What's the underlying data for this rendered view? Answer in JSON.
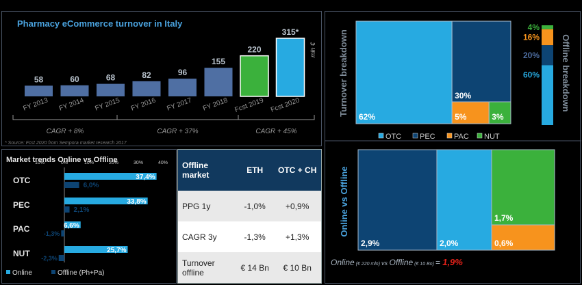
{
  "colors": {
    "dark_blue": "#0d4473",
    "light_blue": "#27aae1",
    "orange": "#f7931d",
    "green": "#3bb13c",
    "grey_blue": "#4f6fa3",
    "red": "#e32119"
  },
  "chart_data": [
    {
      "type": "bar",
      "title": "Pharmacy eCommerce turnover in Italy",
      "unit": "mln €",
      "categories": [
        "FY 2013",
        "FY 2014",
        "FY 2015",
        "FY 2016",
        "FY 2017",
        "FY 2018",
        "Fcst 2019",
        "Fcst 2020"
      ],
      "values": [
        58,
        60,
        68,
        82,
        96,
        155,
        220,
        315
      ],
      "value_labels": [
        "58",
        "60",
        "68",
        "82",
        "96",
        "155",
        "220",
        "315*"
      ],
      "cagr": [
        "CAGR + 8%",
        "CAGR + 37%",
        "CAGR + 45%"
      ],
      "source": "* Source: Fcst 2020 from Sempora market research 2017"
    },
    {
      "type": "bar",
      "title": "Market trends Online vs Offline",
      "axis_ticks": [
        "10%",
        "0%",
        "10%",
        "20%",
        "30%",
        "40%"
      ],
      "xlim": [
        -10,
        40
      ],
      "categories": [
        "OTC",
        "PEC",
        "PAC",
        "NUT"
      ],
      "series": [
        {
          "name": "Online",
          "values": [
            37.4,
            33.8,
            6.6,
            25.7
          ],
          "labels": [
            "37,4%",
            "33,8%",
            "6,6%",
            "25,7%"
          ]
        },
        {
          "name": "Offline (Ph+Pa)",
          "values": [
            6.0,
            2.1,
            -1.3,
            -2.3
          ],
          "labels": [
            "6,0%",
            "2,1%",
            "-1,3%",
            "-2,3%"
          ]
        }
      ]
    },
    {
      "type": "table",
      "headers": [
        "Offline market",
        "ETH",
        "OTC + CH"
      ],
      "rows": [
        [
          "PPG 1y",
          "-1,0%",
          "+0,9%"
        ],
        [
          "CAGR 3y",
          "-1,3%",
          "+1,3%"
        ],
        [
          "Turnover offline",
          "€ 14 Bn",
          "€ 10 Bn"
        ]
      ]
    },
    {
      "type": "area",
      "title": "Turnover breakdown",
      "categories": [
        "OTC",
        "PEC",
        "PAC",
        "NUT"
      ],
      "values": [
        62,
        30,
        5,
        3
      ],
      "labels": [
        "62%",
        "30%",
        "5%",
        "3%"
      ]
    },
    {
      "type": "bar",
      "title": "Offline breakdown",
      "categories": [
        "OTC",
        "PEC",
        "PAC",
        "NUT"
      ],
      "values": [
        60,
        20,
        16,
        4
      ],
      "labels": [
        "60%",
        "20%",
        "16%",
        "4%"
      ]
    },
    {
      "type": "area",
      "title": "Online vs Offline",
      "categories": [
        "PEC",
        "OTC",
        "PAC",
        "NUT"
      ],
      "values": [
        2.9,
        2.0,
        0.6,
        1.7
      ],
      "labels": [
        "2,9%",
        "2,0%",
        "0,6%",
        "1,7%"
      ],
      "footer": {
        "online": "Online",
        "online_sub": "(€ 220 mln)",
        "vs1": "vs",
        "offline": "Offline",
        "offline_sub": "(€ 10 Bn)",
        "eq": "=",
        "total": "1,9%"
      }
    }
  ],
  "breakdown_legend": [
    "OTC",
    "PEC",
    "PAC",
    "NUT"
  ]
}
